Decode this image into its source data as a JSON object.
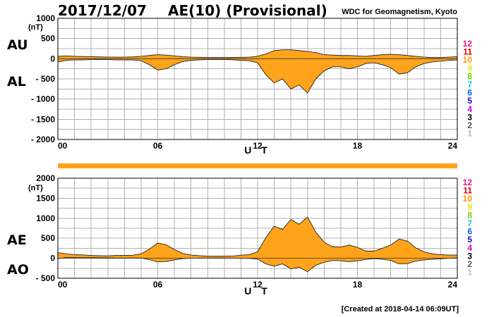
{
  "header": {
    "date": "2017/12/07",
    "title": "AE(10) (Provisional)",
    "source": "WDC for Geomagnetism, Kyoto"
  },
  "footer": {
    "created": "[Created at 2018-04-14 06:09UT]"
  },
  "colors": {
    "fill": "#ffa31a",
    "line": "#222222",
    "grid": "#b0b0b0",
    "status_bar": "#ffa31a"
  },
  "station_numbers": [
    {
      "label": "12",
      "color": "#e8178a"
    },
    {
      "label": "11",
      "color": "#e60000"
    },
    {
      "label": "10",
      "color": "#ff9900"
    },
    {
      "label": "9",
      "color": "#e6e600"
    },
    {
      "label": "8",
      "color": "#66dd00"
    },
    {
      "label": "7",
      "color": "#00cccc"
    },
    {
      "label": "6",
      "color": "#0066ff"
    },
    {
      "label": "5",
      "color": "#2200cc"
    },
    {
      "label": "4",
      "color": "#cc00cc"
    },
    {
      "label": "3",
      "color": "#000000"
    },
    {
      "label": "2",
      "color": "#555555"
    },
    {
      "label": "1",
      "color": "#bbbbbb"
    }
  ],
  "chart_data": [
    {
      "type": "area",
      "upper_label": "AU",
      "lower_label": "AL",
      "unit": "(nT)",
      "xlabel": "U T",
      "xlim": [
        0,
        24
      ],
      "ylim": [
        -2000,
        1000
      ],
      "x_ticks": [
        "00",
        "06",
        "12",
        "18",
        "24"
      ],
      "y_ticks": [
        "1000",
        "500",
        "0",
        "- 500",
        "- 1000",
        "- 1500",
        "- 2000"
      ],
      "grid": true,
      "x": [
        0,
        0.5,
        1,
        1.5,
        2,
        2.5,
        3,
        3.5,
        4,
        4.5,
        5,
        5.5,
        6,
        6.5,
        7,
        7.5,
        8,
        8.5,
        9,
        9.5,
        10,
        10.5,
        11,
        11.5,
        12,
        12.5,
        13,
        13.5,
        14,
        14.5,
        15,
        15.5,
        16,
        16.5,
        17,
        17.5,
        18,
        18.5,
        19,
        19.5,
        20,
        20.5,
        21,
        21.5,
        22,
        22.5,
        23,
        23.5,
        24
      ],
      "series": [
        {
          "name": "AU",
          "values": [
            60,
            70,
            60,
            55,
            50,
            45,
            40,
            40,
            40,
            45,
            60,
            80,
            100,
            90,
            70,
            50,
            40,
            35,
            30,
            30,
            30,
            30,
            35,
            40,
            60,
            120,
            200,
            220,
            220,
            200,
            180,
            150,
            100,
            90,
            80,
            80,
            70,
            60,
            80,
            100,
            110,
            100,
            80,
            60,
            40,
            30,
            30,
            40,
            50
          ]
        },
        {
          "name": "AL",
          "values": [
            -80,
            -40,
            -30,
            -30,
            -20,
            -20,
            -20,
            -30,
            -30,
            -30,
            -50,
            -150,
            -280,
            -250,
            -150,
            -70,
            -40,
            -30,
            -20,
            -20,
            -20,
            -25,
            -40,
            -50,
            -100,
            -400,
            -600,
            -500,
            -750,
            -650,
            -850,
            -500,
            -300,
            -200,
            -200,
            -250,
            -200,
            -120,
            -100,
            -150,
            -220,
            -380,
            -350,
            -200,
            -120,
            -80,
            -60,
            -40,
            -30
          ]
        }
      ]
    },
    {
      "type": "area",
      "upper_label": "AE",
      "lower_label": "AO",
      "unit": "(nT)",
      "xlabel": "U T",
      "xlim": [
        0,
        24
      ],
      "ylim": [
        -500,
        2000
      ],
      "x_ticks": [
        "00",
        "06",
        "12",
        "18",
        "24"
      ],
      "y_ticks": [
        "2000",
        "1500",
        "1000",
        "500",
        "0",
        "- 500"
      ],
      "grid": true,
      "x": [
        0,
        0.5,
        1,
        1.5,
        2,
        2.5,
        3,
        3.5,
        4,
        4.5,
        5,
        5.5,
        6,
        6.5,
        7,
        7.5,
        8,
        8.5,
        9,
        9.5,
        10,
        10.5,
        11,
        11.5,
        12,
        12.5,
        13,
        13.5,
        14,
        14.5,
        15,
        15.5,
        16,
        16.5,
        17,
        17.5,
        18,
        18.5,
        19,
        19.5,
        20,
        20.5,
        21,
        21.5,
        22,
        22.5,
        23,
        23.5,
        24
      ],
      "series": [
        {
          "name": "AE",
          "values": [
            140,
            110,
            90,
            85,
            70,
            65,
            60,
            70,
            70,
            75,
            110,
            230,
            380,
            340,
            220,
            120,
            80,
            65,
            50,
            50,
            50,
            55,
            75,
            90,
            160,
            520,
            800,
            720,
            970,
            850,
            1030,
            650,
            400,
            290,
            280,
            330,
            270,
            180,
            180,
            250,
            330,
            480,
            430,
            260,
            160,
            110,
            90,
            80,
            80
          ]
        },
        {
          "name": "AO",
          "values": [
            -10,
            15,
            15,
            12,
            15,
            12,
            10,
            5,
            5,
            7,
            5,
            -35,
            -90,
            -80,
            -40,
            -10,
            0,
            2,
            5,
            5,
            5,
            2,
            -2,
            -5,
            -20,
            -140,
            -200,
            -140,
            -265,
            -225,
            -335,
            -175,
            -100,
            -55,
            -60,
            -85,
            -65,
            -30,
            -10,
            -25,
            -55,
            -140,
            -135,
            -70,
            -40,
            -25,
            -15,
            0,
            10
          ]
        }
      ]
    }
  ]
}
